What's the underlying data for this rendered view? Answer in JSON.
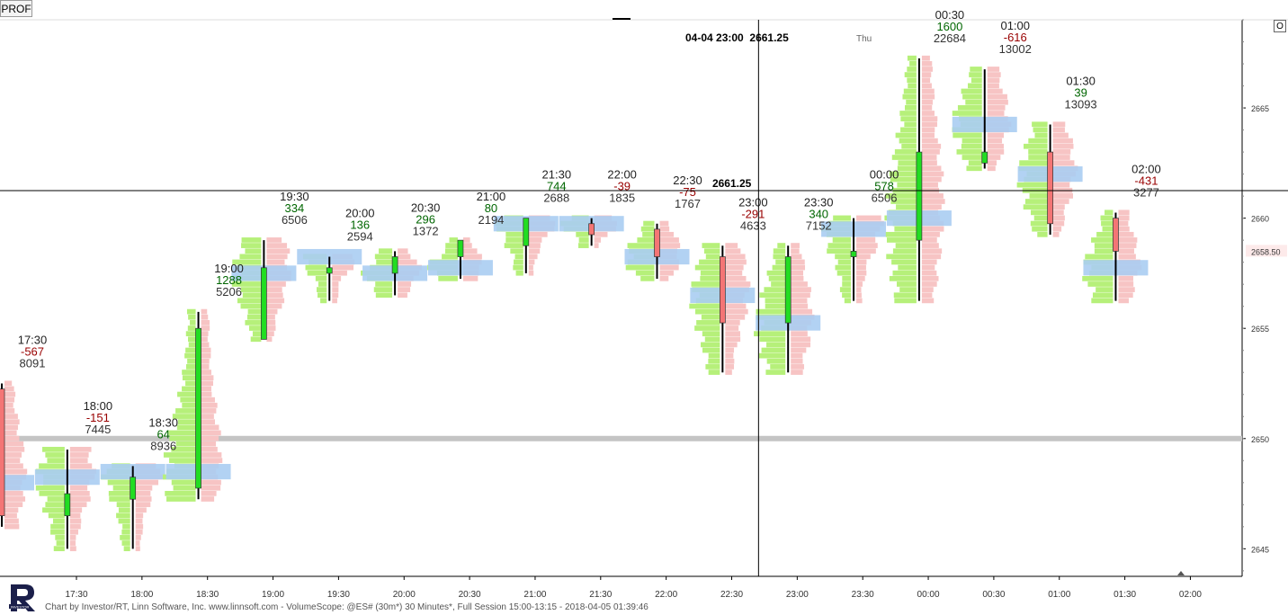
{
  "toolbar": {
    "profile_button": "PROF",
    "option_button": "O"
  },
  "header": {
    "cursor_datetime": "04-04 23:00",
    "cursor_price": "2661.25",
    "day_label": "Thu"
  },
  "crosshair_label": "2661.25",
  "last_price_label": "2658.50",
  "footer": {
    "text": "Chart by Investor/RT, Linn Software, Inc. www.linnsoft.com - VolumeScope: @ES# (30m*) 30 Minutes*, Full Session 15:00-13:15 - 2018-04-05 01:39:46"
  },
  "colors": {
    "up_candle": "#22dd22",
    "down_candle": "#f47575",
    "up_profile": "#b6f07a",
    "down_profile": "#f7c4c4",
    "poc": "#aacdf2",
    "positive_delta": "#006600",
    "negative_delta": "#990000",
    "volume_text": "#333333"
  },
  "chart_data": {
    "type": "candlestick-volume-profile",
    "timeframe": "30 Minutes",
    "yaxis": {
      "range": [
        2643.75,
        2669
      ],
      "ticks": [
        2645,
        2650,
        2655,
        2660,
        2665
      ],
      "side": "right"
    },
    "xaxis": {
      "ticks": [
        "17:30",
        "18:00",
        "18:30",
        "19:00",
        "19:30",
        "20:00",
        "20:30",
        "21:00",
        "21:30",
        "22:00",
        "22:30",
        "23:00",
        "23:30",
        "00:00",
        "00:30",
        "01:00",
        "01:30",
        "02:00"
      ]
    },
    "reference_line": 2650,
    "crosshair": {
      "price": 2661.25,
      "time": "23:00"
    },
    "last_price": 2658.5,
    "bars": [
      {
        "time": "17:30",
        "open": 2652.25,
        "high": 2652.5,
        "low": 2646.0,
        "close": 2646.5,
        "delta": "-567",
        "volume": "8091",
        "poc": 2648.0
      },
      {
        "time": "18:00",
        "open": 2646.5,
        "high": 2649.5,
        "low": 2645.0,
        "close": 2647.5,
        "delta": "-151",
        "volume": "7445",
        "poc": 2648.25
      },
      {
        "time": "18:30",
        "open": 2647.25,
        "high": 2648.75,
        "low": 2645.0,
        "close": 2648.25,
        "delta": "64",
        "volume": "8936",
        "poc": 2648.5
      },
      {
        "time": "19:00",
        "open": 2647.75,
        "high": 2655.75,
        "low": 2647.25,
        "close": 2655.0,
        "delta": "1288",
        "volume": "5206",
        "poc": 2648.5
      },
      {
        "time": "19:30",
        "open": 2654.5,
        "high": 2659.0,
        "low": 2654.5,
        "close": 2657.75,
        "delta": "334",
        "volume": "6506",
        "poc": 2657.5
      },
      {
        "time": "20:00",
        "open": 2657.5,
        "high": 2658.25,
        "low": 2656.25,
        "close": 2657.75,
        "delta": "136",
        "volume": "2594",
        "poc": 2658.25
      },
      {
        "time": "20:30",
        "open": 2657.5,
        "high": 2658.5,
        "low": 2656.5,
        "close": 2658.25,
        "delta": "296",
        "volume": "1372",
        "poc": 2657.5
      },
      {
        "time": "21:00",
        "open": 2658.25,
        "high": 2659.0,
        "low": 2657.25,
        "close": 2659.0,
        "delta": "80",
        "volume": "2194",
        "poc": 2657.75
      },
      {
        "time": "21:30",
        "open": 2658.75,
        "high": 2660.0,
        "low": 2657.5,
        "close": 2660.0,
        "delta": "744",
        "volume": "2688",
        "poc": 2659.75
      },
      {
        "time": "22:00",
        "open": 2659.75,
        "high": 2660.0,
        "low": 2658.75,
        "close": 2659.25,
        "delta": "-39",
        "volume": "1835",
        "poc": 2659.75
      },
      {
        "time": "22:30",
        "open": 2659.5,
        "high": 2659.75,
        "low": 2657.25,
        "close": 2658.25,
        "delta": "-75",
        "volume": "1767",
        "poc": 2658.25
      },
      {
        "time": "23:00",
        "open": 2658.25,
        "high": 2658.75,
        "low": 2653.0,
        "close": 2655.25,
        "delta": "-291",
        "volume": "4633",
        "poc": 2656.5
      },
      {
        "time": "23:30",
        "open": 2655.25,
        "high": 2658.75,
        "low": 2653.0,
        "close": 2658.25,
        "delta": "340",
        "volume": "7152",
        "poc": 2655.25
      },
      {
        "time": "00:00",
        "open": 2658.25,
        "high": 2660.0,
        "low": 2656.25,
        "close": 2658.5,
        "delta": "578",
        "volume": "6506",
        "poc": 2659.5
      },
      {
        "time": "00:30",
        "open": 2659.0,
        "high": 2667.25,
        "low": 2656.25,
        "close": 2663.0,
        "delta": "1600",
        "volume": "22684",
        "poc": 2660.0
      },
      {
        "time": "01:00",
        "open": 2662.5,
        "high": 2666.75,
        "low": 2662.25,
        "close": 2663.0,
        "delta": "-616",
        "volume": "13002",
        "poc": 2664.25
      },
      {
        "time": "01:30",
        "open": 2663.0,
        "high": 2664.25,
        "low": 2659.25,
        "close": 2659.75,
        "delta": "39",
        "volume": "13093",
        "poc": 2662.0
      },
      {
        "time": "02:00",
        "open": 2660.0,
        "high": 2660.25,
        "low": 2656.25,
        "close": 2658.5,
        "delta": "-431",
        "volume": "3277",
        "poc": 2657.75
      }
    ]
  }
}
